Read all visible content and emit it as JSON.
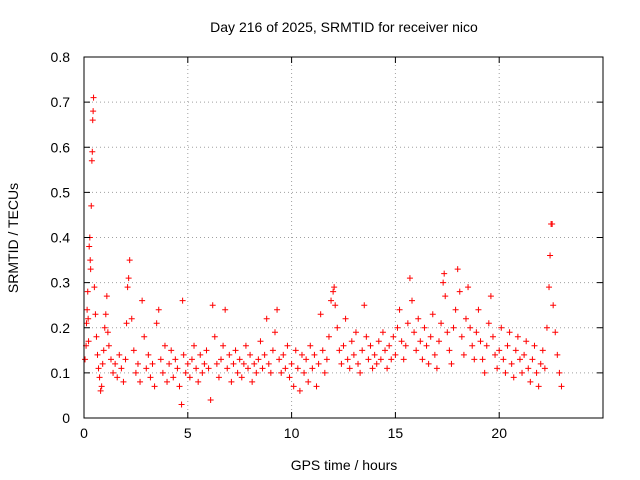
{
  "chart_data": {
    "type": "scatter",
    "title": "Day 216 of 2025, SRMTID for receiver nico",
    "xlabel": "GPS time / hours",
    "ylabel": "SRMTID / TECUs",
    "xlim": [
      0,
      25
    ],
    "ylim": [
      0,
      0.8
    ],
    "xticks": [
      0,
      5,
      10,
      15,
      20
    ],
    "xtick_labels": [
      "0",
      "5",
      "10",
      "15",
      "20"
    ],
    "yticks": [
      0,
      0.1,
      0.2,
      0.3,
      0.4,
      0.5,
      0.6,
      0.7,
      0.8
    ],
    "ytick_labels": [
      "0",
      "0.1",
      "0.2",
      "0.3",
      "0.4",
      "0.5",
      "0.6",
      "0.7",
      "0.8"
    ],
    "grid": true,
    "marker": "+",
    "color": "#ff0000",
    "series": [
      {
        "name": "SRMTID",
        "points": [
          [
            0.05,
            0.13
          ],
          [
            0.1,
            0.16
          ],
          [
            0.12,
            0.21
          ],
          [
            0.15,
            0.24
          ],
          [
            0.18,
            0.28
          ],
          [
            0.2,
            0.22
          ],
          [
            0.22,
            0.17
          ],
          [
            0.25,
            0.38
          ],
          [
            0.28,
            0.4
          ],
          [
            0.3,
            0.35
          ],
          [
            0.32,
            0.33
          ],
          [
            0.35,
            0.47
          ],
          [
            0.38,
            0.57
          ],
          [
            0.4,
            0.59
          ],
          [
            0.42,
            0.66
          ],
          [
            0.44,
            0.68
          ],
          [
            0.46,
            0.71
          ],
          [
            0.5,
            0.29
          ],
          [
            0.55,
            0.23
          ],
          [
            0.6,
            0.18
          ],
          [
            0.65,
            0.14
          ],
          [
            0.7,
            0.11
          ],
          [
            0.75,
            0.09
          ],
          [
            0.8,
            0.06
          ],
          [
            0.85,
            0.07
          ],
          [
            0.9,
            0.12
          ],
          [
            0.95,
            0.15
          ],
          [
            1.0,
            0.2
          ],
          [
            1.05,
            0.23
          ],
          [
            1.1,
            0.27
          ],
          [
            1.15,
            0.19
          ],
          [
            1.2,
            0.16
          ],
          [
            1.3,
            0.13
          ],
          [
            1.4,
            0.1
          ],
          [
            1.5,
            0.12
          ],
          [
            1.6,
            0.09
          ],
          [
            1.7,
            0.14
          ],
          [
            1.8,
            0.11
          ],
          [
            1.9,
            0.08
          ],
          [
            2.0,
            0.13
          ],
          [
            2.05,
            0.21
          ],
          [
            2.1,
            0.29
          ],
          [
            2.15,
            0.31
          ],
          [
            2.2,
            0.35
          ],
          [
            2.3,
            0.22
          ],
          [
            2.4,
            0.15
          ],
          [
            2.5,
            0.1
          ],
          [
            2.6,
            0.12
          ],
          [
            2.7,
            0.08
          ],
          [
            2.8,
            0.26
          ],
          [
            2.9,
            0.18
          ],
          [
            3.0,
            0.11
          ],
          [
            3.1,
            0.14
          ],
          [
            3.2,
            0.09
          ],
          [
            3.3,
            0.12
          ],
          [
            3.4,
            0.07
          ],
          [
            3.5,
            0.21
          ],
          [
            3.6,
            0.24
          ],
          [
            3.7,
            0.13
          ],
          [
            3.8,
            0.1
          ],
          [
            3.9,
            0.16
          ],
          [
            4.0,
            0.08
          ],
          [
            4.1,
            0.12
          ],
          [
            4.2,
            0.15
          ],
          [
            4.3,
            0.09
          ],
          [
            4.4,
            0.13
          ],
          [
            4.5,
            0.11
          ],
          [
            4.6,
            0.07
          ],
          [
            4.7,
            0.03
          ],
          [
            4.75,
            0.26
          ],
          [
            4.8,
            0.14
          ],
          [
            4.9,
            0.1
          ],
          [
            5.0,
            0.12
          ],
          [
            5.1,
            0.09
          ],
          [
            5.2,
            0.13
          ],
          [
            5.3,
            0.16
          ],
          [
            5.4,
            0.11
          ],
          [
            5.5,
            0.08
          ],
          [
            5.6,
            0.14
          ],
          [
            5.7,
            0.1
          ],
          [
            5.8,
            0.12
          ],
          [
            5.9,
            0.15
          ],
          [
            6.0,
            0.11
          ],
          [
            6.1,
            0.04
          ],
          [
            6.2,
            0.25
          ],
          [
            6.3,
            0.18
          ],
          [
            6.4,
            0.12
          ],
          [
            6.5,
            0.09
          ],
          [
            6.6,
            0.13
          ],
          [
            6.7,
            0.16
          ],
          [
            6.8,
            0.24
          ],
          [
            6.9,
            0.11
          ],
          [
            7.0,
            0.14
          ],
          [
            7.1,
            0.08
          ],
          [
            7.2,
            0.12
          ],
          [
            7.3,
            0.15
          ],
          [
            7.4,
            0.1
          ],
          [
            7.5,
            0.13
          ],
          [
            7.6,
            0.09
          ],
          [
            7.7,
            0.12
          ],
          [
            7.8,
            0.16
          ],
          [
            7.9,
            0.11
          ],
          [
            8.0,
            0.14
          ],
          [
            8.1,
            0.08
          ],
          [
            8.2,
            0.12
          ],
          [
            8.3,
            0.1
          ],
          [
            8.4,
            0.13
          ],
          [
            8.5,
            0.17
          ],
          [
            8.6,
            0.11
          ],
          [
            8.7,
            0.14
          ],
          [
            8.8,
            0.22
          ],
          [
            8.9,
            0.12
          ],
          [
            9.0,
            0.1
          ],
          [
            9.1,
            0.15
          ],
          [
            9.2,
            0.19
          ],
          [
            9.3,
            0.24
          ],
          [
            9.4,
            0.13
          ],
          [
            9.5,
            0.1
          ],
          [
            9.6,
            0.14
          ],
          [
            9.7,
            0.11
          ],
          [
            9.8,
            0.16
          ],
          [
            9.9,
            0.09
          ],
          [
            10.0,
            0.12
          ],
          [
            10.1,
            0.07
          ],
          [
            10.2,
            0.15
          ],
          [
            10.3,
            0.11
          ],
          [
            10.4,
            0.06
          ],
          [
            10.5,
            0.14
          ],
          [
            10.6,
            0.1
          ],
          [
            10.7,
            0.13
          ],
          [
            10.8,
            0.08
          ],
          [
            10.9,
            0.16
          ],
          [
            11.0,
            0.11
          ],
          [
            11.1,
            0.14
          ],
          [
            11.2,
            0.07
          ],
          [
            11.3,
            0.12
          ],
          [
            11.4,
            0.23
          ],
          [
            11.5,
            0.15
          ],
          [
            11.6,
            0.1
          ],
          [
            11.7,
            0.13
          ],
          [
            11.8,
            0.18
          ],
          [
            11.9,
            0.26
          ],
          [
            12.0,
            0.28
          ],
          [
            12.05,
            0.29
          ],
          [
            12.1,
            0.25
          ],
          [
            12.2,
            0.2
          ],
          [
            12.3,
            0.15
          ],
          [
            12.4,
            0.12
          ],
          [
            12.5,
            0.16
          ],
          [
            12.6,
            0.22
          ],
          [
            12.7,
            0.13
          ],
          [
            12.8,
            0.11
          ],
          [
            12.9,
            0.17
          ],
          [
            13.0,
            0.14
          ],
          [
            13.1,
            0.19
          ],
          [
            13.2,
            0.12
          ],
          [
            13.3,
            0.1
          ],
          [
            13.4,
            0.15
          ],
          [
            13.5,
            0.25
          ],
          [
            13.6,
            0.18
          ],
          [
            13.7,
            0.13
          ],
          [
            13.8,
            0.16
          ],
          [
            13.9,
            0.11
          ],
          [
            14.0,
            0.14
          ],
          [
            14.1,
            0.12
          ],
          [
            14.2,
            0.17
          ],
          [
            14.3,
            0.13
          ],
          [
            14.4,
            0.19
          ],
          [
            14.5,
            0.15
          ],
          [
            14.6,
            0.11
          ],
          [
            14.7,
            0.16
          ],
          [
            14.8,
            0.13
          ],
          [
            14.9,
            0.18
          ],
          [
            15.0,
            0.14
          ],
          [
            15.1,
            0.2
          ],
          [
            15.2,
            0.24
          ],
          [
            15.3,
            0.17
          ],
          [
            15.4,
            0.13
          ],
          [
            15.5,
            0.16
          ],
          [
            15.6,
            0.21
          ],
          [
            15.7,
            0.31
          ],
          [
            15.8,
            0.26
          ],
          [
            15.9,
            0.19
          ],
          [
            16.0,
            0.15
          ],
          [
            16.1,
            0.22
          ],
          [
            16.2,
            0.17
          ],
          [
            16.3,
            0.13
          ],
          [
            16.4,
            0.2
          ],
          [
            16.5,
            0.16
          ],
          [
            16.6,
            0.12
          ],
          [
            16.7,
            0.18
          ],
          [
            16.8,
            0.23
          ],
          [
            16.9,
            0.14
          ],
          [
            17.0,
            0.11
          ],
          [
            17.1,
            0.17
          ],
          [
            17.2,
            0.21
          ],
          [
            17.3,
            0.3
          ],
          [
            17.35,
            0.32
          ],
          [
            17.4,
            0.27
          ],
          [
            17.5,
            0.19
          ],
          [
            17.6,
            0.15
          ],
          [
            17.7,
            0.12
          ],
          [
            17.8,
            0.2
          ],
          [
            17.9,
            0.24
          ],
          [
            18.0,
            0.33
          ],
          [
            18.1,
            0.28
          ],
          [
            18.2,
            0.18
          ],
          [
            18.3,
            0.14
          ],
          [
            18.4,
            0.22
          ],
          [
            18.5,
            0.29
          ],
          [
            18.6,
            0.2
          ],
          [
            18.7,
            0.16
          ],
          [
            18.8,
            0.13
          ],
          [
            18.9,
            0.19
          ],
          [
            19.0,
            0.24
          ],
          [
            19.1,
            0.17
          ],
          [
            19.2,
            0.13
          ],
          [
            19.3,
            0.1
          ],
          [
            19.4,
            0.16
          ],
          [
            19.5,
            0.21
          ],
          [
            19.6,
            0.27
          ],
          [
            19.7,
            0.18
          ],
          [
            19.8,
            0.14
          ],
          [
            19.9,
            0.11
          ],
          [
            20.0,
            0.15
          ],
          [
            20.1,
            0.2
          ],
          [
            20.2,
            0.13
          ],
          [
            20.3,
            0.1
          ],
          [
            20.4,
            0.16
          ],
          [
            20.5,
            0.19
          ],
          [
            20.6,
            0.12
          ],
          [
            20.7,
            0.09
          ],
          [
            20.8,
            0.15
          ],
          [
            20.9,
            0.18
          ],
          [
            21.0,
            0.13
          ],
          [
            21.1,
            0.1
          ],
          [
            21.2,
            0.14
          ],
          [
            21.3,
            0.17
          ],
          [
            21.4,
            0.11
          ],
          [
            21.5,
            0.08
          ],
          [
            21.6,
            0.13
          ],
          [
            21.7,
            0.16
          ],
          [
            21.8,
            0.1
          ],
          [
            21.9,
            0.07
          ],
          [
            22.0,
            0.12
          ],
          [
            22.1,
            0.15
          ],
          [
            22.2,
            0.11
          ],
          [
            22.3,
            0.2
          ],
          [
            22.4,
            0.29
          ],
          [
            22.45,
            0.36
          ],
          [
            22.5,
            0.43
          ],
          [
            22.55,
            0.43
          ],
          [
            22.6,
            0.25
          ],
          [
            22.7,
            0.19
          ],
          [
            22.8,
            0.14
          ],
          [
            22.9,
            0.1
          ],
          [
            23.0,
            0.07
          ]
        ]
      }
    ]
  }
}
